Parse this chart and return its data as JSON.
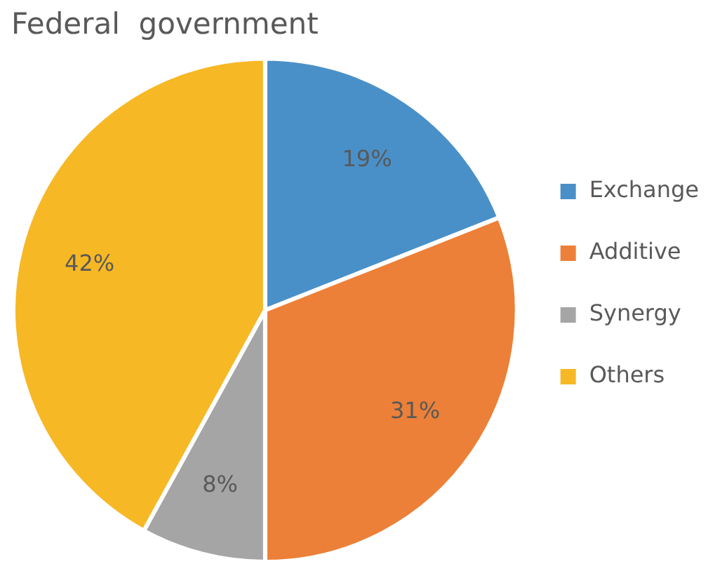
{
  "chart_data": {
    "type": "pie",
    "title": "Federal  government",
    "categories": [
      "Exchange",
      "Additive",
      "Synergy",
      "Others"
    ],
    "values": [
      19,
      31,
      8,
      42
    ],
    "colors": [
      "#4a90c8",
      "#ec8038",
      "#a5a5a5",
      "#f7b825"
    ],
    "value_labels": [
      "19%",
      "31%",
      "8%",
      "42%"
    ],
    "legend": "right"
  }
}
